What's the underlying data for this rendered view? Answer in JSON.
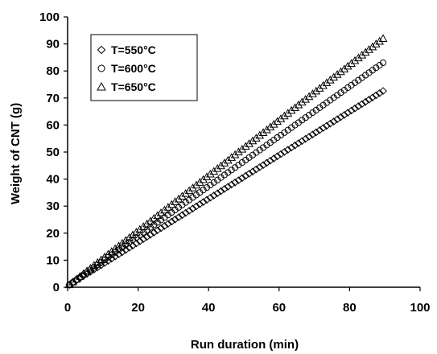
{
  "chart_data": {
    "type": "scatter",
    "title": "",
    "xlabel": "Run duration (min)",
    "ylabel": "Weight of CNT (g)",
    "xlim": [
      0,
      100
    ],
    "ylim": [
      0,
      100
    ],
    "x_ticks": [
      "0",
      "20",
      "40",
      "60",
      "80",
      "100"
    ],
    "y_ticks": [
      "0",
      "10",
      "20",
      "30",
      "40",
      "50",
      "60",
      "70",
      "80",
      "90",
      "100"
    ],
    "grid": false,
    "legend_position": "top-left",
    "series": [
      {
        "name": "T=550°C",
        "marker": "diamond",
        "x_start": 0.5,
        "x_end": 90,
        "x_step": 1,
        "y_start": 0.9,
        "y_end": 73
      },
      {
        "name": "T=600°C",
        "marker": "circle",
        "x_start": 0.5,
        "x_end": 90,
        "x_step": 1,
        "y_start": 0.9,
        "y_end": 83.5
      },
      {
        "name": "T=650°C",
        "marker": "triangle",
        "x_start": 0.5,
        "x_end": 90,
        "x_step": 1,
        "y_start": 0.9,
        "y_end": 92.5
      }
    ]
  }
}
